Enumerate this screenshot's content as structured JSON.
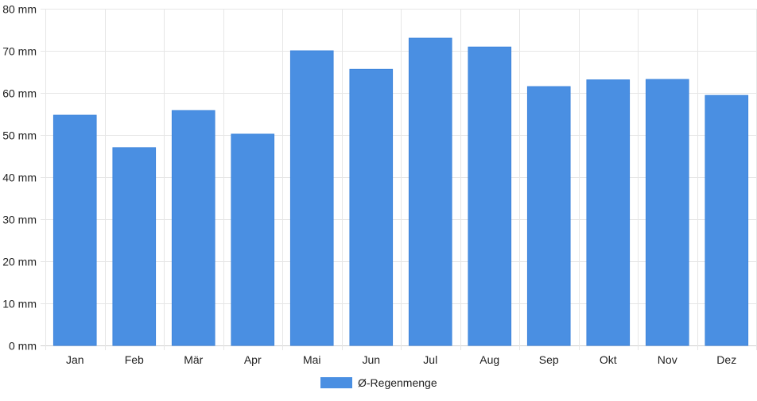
{
  "chart_data": {
    "type": "bar",
    "categories": [
      "Jan",
      "Feb",
      "Mär",
      "Apr",
      "Mai",
      "Jun",
      "Jul",
      "Aug",
      "Sep",
      "Okt",
      "Nov",
      "Dez"
    ],
    "series": [
      {
        "name": "Ø-Regenmenge",
        "values": [
          54.7,
          47.0,
          55.8,
          50.2,
          70.0,
          65.6,
          73.0,
          70.9,
          61.5,
          63.1,
          63.2,
          59.4
        ],
        "color": "#4a8fe2"
      }
    ],
    "ylim": [
      0,
      80
    ],
    "yticks": [
      0,
      10,
      20,
      30,
      40,
      50,
      60,
      70,
      80
    ],
    "y_unit": "mm",
    "grid": true,
    "legend_position": "bottom-center",
    "title": "",
    "xlabel": "",
    "ylabel": ""
  }
}
